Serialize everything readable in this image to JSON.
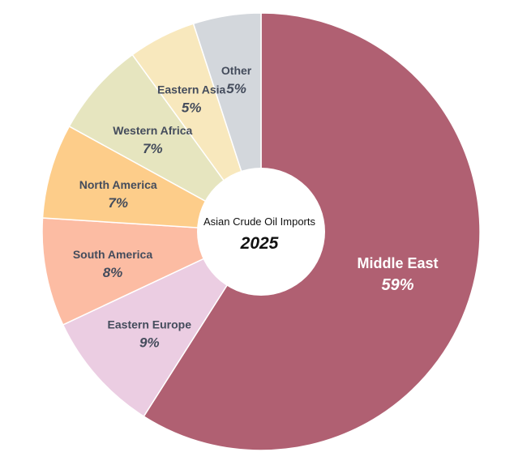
{
  "chart_data": {
    "type": "pie",
    "center_label": {
      "title": "Asian Crude Oil Imports",
      "year": "2025"
    },
    "slices": [
      {
        "label": "Middle East",
        "value": 59,
        "value_label": "59%",
        "color": "#b06072",
        "text_color": "#ffffff"
      },
      {
        "label": "Eastern Europe",
        "value": 9,
        "value_label": "9%",
        "color": "#ebcde2",
        "text_color": "#444c5c"
      },
      {
        "label": "South America",
        "value": 8,
        "value_label": "8%",
        "color": "#fcbca3",
        "text_color": "#444c5c"
      },
      {
        "label": "North America",
        "value": 7,
        "value_label": "7%",
        "color": "#fdcd8a",
        "text_color": "#444c5c"
      },
      {
        "label": "Western Africa",
        "value": 7,
        "value_label": "7%",
        "color": "#e6e5bf",
        "text_color": "#444c5c"
      },
      {
        "label": "Eastern Asia",
        "value": 5,
        "value_label": "5%",
        "color": "#f8e8bd",
        "text_color": "#444c5c"
      },
      {
        "label": "Other",
        "value": 5,
        "value_label": "5%",
        "color": "#d3d7dc",
        "text_color": "#444c5c"
      }
    ]
  }
}
